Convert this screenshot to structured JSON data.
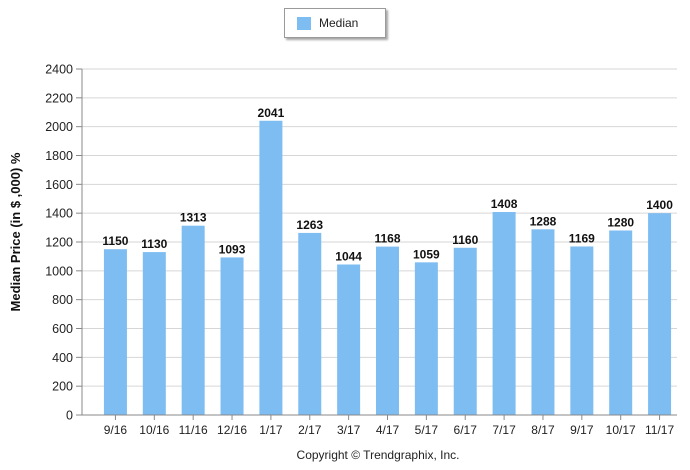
{
  "legend": {
    "label": "Median",
    "color": "#7dbdf2"
  },
  "footer": {
    "copyright": "Copyright © Trendgraphix, Inc."
  },
  "chart_data": {
    "type": "bar",
    "title": "",
    "xlabel": "",
    "ylabel": "Median Price (in $ ,000) %",
    "ylim": [
      0,
      2400
    ],
    "yticks": [
      0,
      200,
      400,
      600,
      800,
      1000,
      1200,
      1400,
      1600,
      1800,
      2000,
      2200,
      2400
    ],
    "grid": true,
    "legend_position": "top-center",
    "bar_color": "#7dbdf2",
    "categories": [
      "9/16",
      "10/16",
      "11/16",
      "12/16",
      "1/17",
      "2/17",
      "3/17",
      "4/17",
      "5/17",
      "6/17",
      "7/17",
      "8/17",
      "9/17",
      "10/17",
      "11/17"
    ],
    "series": [
      {
        "name": "Median",
        "values": [
          1150,
          1130,
          1313,
          1093,
          2041,
          1263,
          1044,
          1168,
          1059,
          1160,
          1408,
          1288,
          1169,
          1280,
          1400
        ]
      }
    ]
  }
}
